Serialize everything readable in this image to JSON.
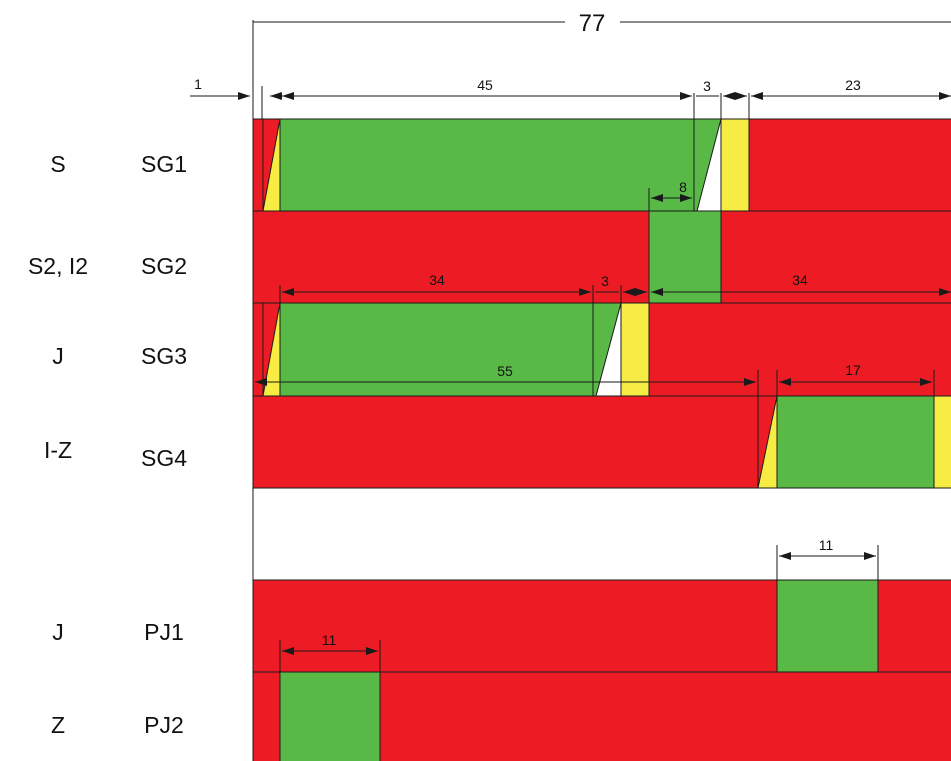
{
  "colors": {
    "red": "#ED1C24",
    "green": "#58B947",
    "yellow": "#F7EC44",
    "white": "#FFFFFF",
    "line": "#1A1A1A"
  },
  "total_cycle": "77",
  "rows": [
    {
      "direction": "S",
      "group": "SG1"
    },
    {
      "direction": "S2, I2",
      "group": "SG2"
    },
    {
      "direction": "J",
      "group": "SG3"
    },
    {
      "direction": "I-Z",
      "group": "SG4"
    },
    {
      "direction": "J",
      "group": "PJ1"
    },
    {
      "direction": "Z",
      "group": "PJ2"
    }
  ],
  "dimensions": {
    "d1": "1",
    "d45": "45",
    "d3a": "3",
    "d23": "23",
    "d8": "8",
    "d34a": "34",
    "d3b": "3",
    "d34b": "34",
    "d55": "55",
    "d17": "17",
    "d11a": "11",
    "d11b": "11"
  }
}
